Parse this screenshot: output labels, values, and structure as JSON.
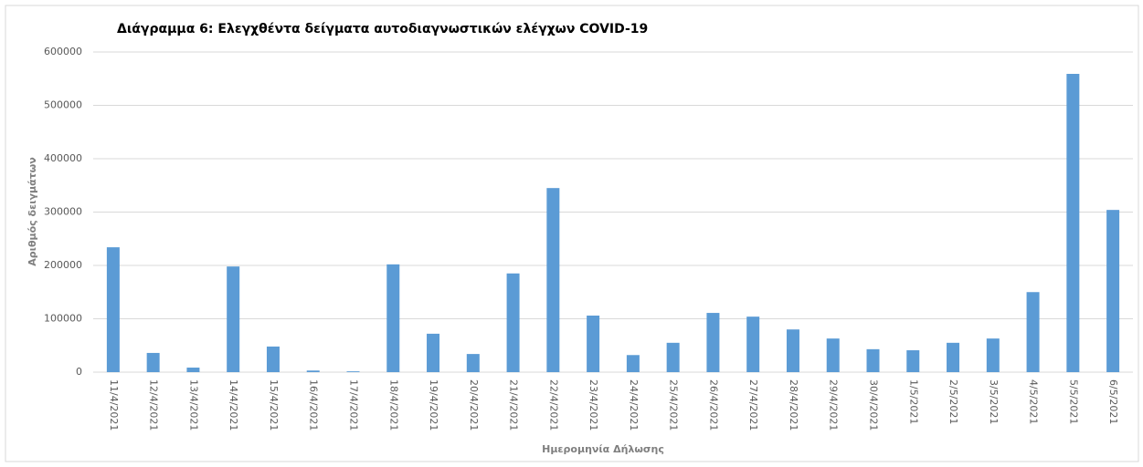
{
  "chart_data": {
    "type": "bar",
    "title": "Διάγραμμα 6: Ελεγχθέντα δείγματα αυτοδιαγνωστικών ελέγχων COVID-19",
    "x_label": "Ημερομηνία Δήλωσης",
    "y_label": "Αριθμός δειγμάτων",
    "categories": [
      "11/4/2021",
      "12/4/2021",
      "13/4/2021",
      "14/4/2021",
      "15/4/2021",
      "16/4/2021",
      "17/4/2021",
      "18/4/2021",
      "19/4/2021",
      "20/4/2021",
      "21/4/2021",
      "22/4/2021",
      "23/4/2021",
      "24/4/2021",
      "25/4/2021",
      "26/4/2021",
      "27/4/2021",
      "28/4/2021",
      "29/4/2021",
      "30/4/2021",
      "1/5/2021",
      "2/5/2021",
      "3/5/2021",
      "4/5/2021",
      "5/5/2021",
      "6/5/2021"
    ],
    "values": [
      234000,
      36000,
      8500,
      198000,
      48000,
      3000,
      1500,
      202000,
      72000,
      34000,
      185000,
      345000,
      106000,
      32000,
      55000,
      111000,
      104000,
      80000,
      63000,
      43000,
      41000,
      55000,
      63000,
      150000,
      559000,
      304000
    ],
    "color": "#5b9bd5",
    "ylim": [
      0,
      600000
    ],
    "yticks": [
      0,
      100000,
      200000,
      300000,
      400000,
      500000,
      600000
    ],
    "grid": true
  }
}
